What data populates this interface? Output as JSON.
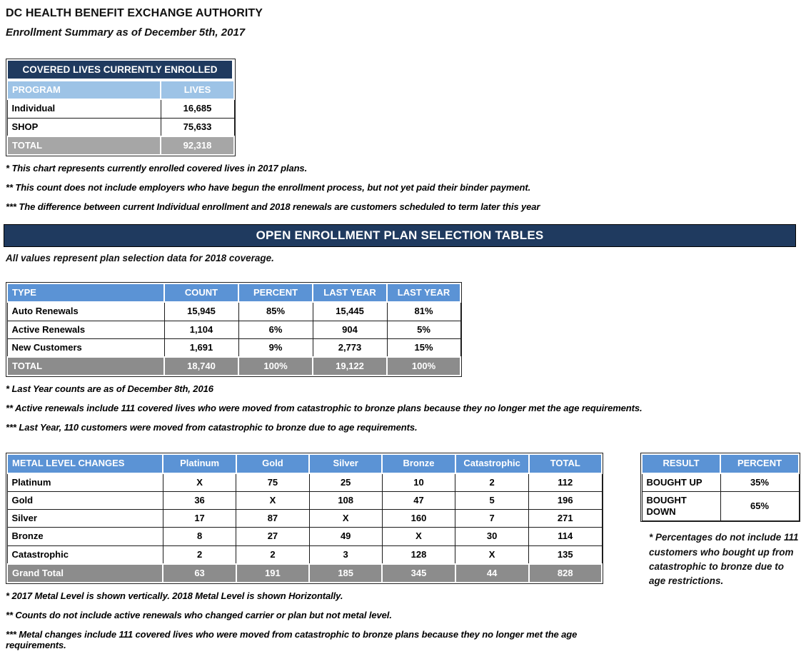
{
  "page": {
    "title": "DC HEALTH BENEFIT EXCHANGE AUTHORITY",
    "subtitle": "Enrollment Summary as of December 5th, 2017"
  },
  "covered_lives": {
    "title": "COVERED LIVES CURRENTLY ENROLLED",
    "columns": [
      "PROGRAM",
      "LIVES"
    ],
    "rows": [
      [
        "Individual",
        "16,685"
      ],
      [
        "SHOP",
        "75,633"
      ]
    ],
    "total": [
      "TOTAL",
      "92,318"
    ],
    "footnotes": [
      "* This chart represents currently enrolled covered lives in 2017 plans.",
      "** This count does not include employers who have begun the enrollment process, but not yet paid their binder payment.",
      "*** The difference between current Individual enrollment and 2018 renewals are customers scheduled to term later this year"
    ]
  },
  "banner": {
    "title": "OPEN ENROLLMENT PLAN SELECTION TABLES",
    "subtitle": "All values represent plan selection data for 2018 coverage."
  },
  "plan_selection": {
    "columns": [
      "TYPE",
      "COUNT",
      "PERCENT",
      "LAST YEAR",
      "LAST YEAR"
    ],
    "rows": [
      [
        "Auto Renewals",
        "15,945",
        "85%",
        "15,445",
        "81%"
      ],
      [
        "Active Renewals",
        "1,104",
        "6%",
        "904",
        "5%"
      ],
      [
        "New Customers",
        "1,691",
        "9%",
        "2,773",
        "15%"
      ]
    ],
    "total": [
      "TOTAL",
      "18,740",
      "100%",
      "19,122",
      "100%"
    ],
    "footnotes": [
      "* Last Year counts are as of December 8th, 2016",
      "** Active renewals include 111 covered lives who were moved from catastrophic to bronze plans because they no longer met the age requirements.",
      "*** Last Year, 110 customers were moved from catastrophic to bronze due to age requirements."
    ]
  },
  "metal_changes": {
    "columns": [
      "METAL LEVEL CHANGES",
      "Platinum",
      "Gold",
      "Silver",
      "Bronze",
      "Catastrophic",
      "TOTAL"
    ],
    "rows": [
      [
        "Platinum",
        "X",
        "75",
        "25",
        "10",
        "2",
        "112"
      ],
      [
        "Gold",
        "36",
        "X",
        "108",
        "47",
        "5",
        "196"
      ],
      [
        "Silver",
        "17",
        "87",
        "X",
        "160",
        "7",
        "271"
      ],
      [
        "Bronze",
        "8",
        "27",
        "49",
        "X",
        "30",
        "114"
      ],
      [
        "Catastrophic",
        "2",
        "2",
        "3",
        "128",
        "X",
        "135"
      ]
    ],
    "total": [
      "Grand Total",
      "63",
      "191",
      "185",
      "345",
      "44",
      "828"
    ],
    "footnotes": [
      "* 2017 Metal Level is shown vertically. 2018 Metal Level is shown Horizontally.",
      "** Counts do not include active renewals who changed carrier or plan but not metal level.",
      "*** Metal changes include 111 covered lives who were moved from catastrophic to bronze plans because they no longer met the age requirements."
    ]
  },
  "result": {
    "columns": [
      "RESULT",
      "PERCENT"
    ],
    "rows": [
      [
        "BOUGHT UP",
        "35%"
      ],
      [
        "BOUGHT DOWN",
        "65%"
      ]
    ],
    "note": "* Percentages do not include 111 customers who bought up from catastrophic to bronze due to age restrictions."
  },
  "colors": {
    "navy": "#1F3A5F",
    "header_blue": "#5B93D5",
    "header_light_blue": "#9DC3E6",
    "total_gray": "#8C8C8C",
    "total_gray_light": "#A6A6A6"
  }
}
